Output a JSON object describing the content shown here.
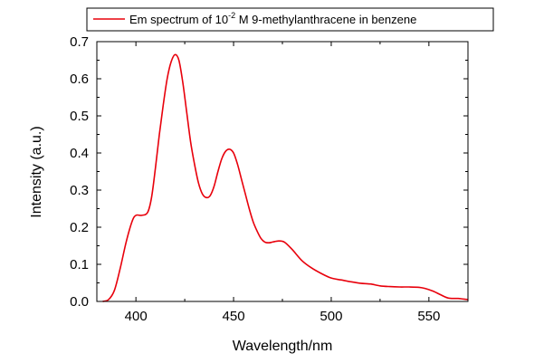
{
  "chart_data": {
    "type": "line",
    "xlabel": "Wavelength/nm",
    "ylabel": "Intensity (a.u.)",
    "xlim": [
      380,
      570
    ],
    "ylim": [
      0.0,
      0.7
    ],
    "x_ticks": [
      400,
      450,
      500,
      550
    ],
    "y_ticks": [
      0.0,
      0.1,
      0.2,
      0.3,
      0.4,
      0.5,
      0.6,
      0.7
    ],
    "x_tick_labels": [
      "400",
      "450",
      "500",
      "550"
    ],
    "y_tick_labels": [
      "0.0",
      "0.1",
      "0.2",
      "0.3",
      "0.4",
      "0.5",
      "0.6",
      "0.7"
    ],
    "grid": false,
    "legend_position": "top",
    "series": [
      {
        "name": "Em spectrum of 10⁻² M 9-methylanthracene in benzene",
        "legend_prefix": "Em spectrum of 10",
        "legend_superscript": "-2",
        "legend_suffix": " M 9-methylanthracene in benzene",
        "color": "#e8000b",
        "points": [
          [
            383,
            0.0
          ],
          [
            386,
            0.005
          ],
          [
            389,
            0.03
          ],
          [
            392,
            0.09
          ],
          [
            395,
            0.16
          ],
          [
            398,
            0.215
          ],
          [
            400,
            0.232
          ],
          [
            403,
            0.232
          ],
          [
            406,
            0.24
          ],
          [
            408,
            0.28
          ],
          [
            410,
            0.36
          ],
          [
            412,
            0.45
          ],
          [
            414,
            0.53
          ],
          [
            416,
            0.6
          ],
          [
            418,
            0.645
          ],
          [
            420,
            0.665
          ],
          [
            422,
            0.65
          ],
          [
            424,
            0.59
          ],
          [
            426,
            0.51
          ],
          [
            428,
            0.43
          ],
          [
            430,
            0.37
          ],
          [
            432,
            0.32
          ],
          [
            434,
            0.29
          ],
          [
            436,
            0.28
          ],
          [
            438,
            0.285
          ],
          [
            440,
            0.31
          ],
          [
            442,
            0.35
          ],
          [
            444,
            0.385
          ],
          [
            446,
            0.405
          ],
          [
            448,
            0.41
          ],
          [
            450,
            0.4
          ],
          [
            452,
            0.37
          ],
          [
            454,
            0.33
          ],
          [
            456,
            0.29
          ],
          [
            458,
            0.25
          ],
          [
            460,
            0.215
          ],
          [
            462,
            0.19
          ],
          [
            464,
            0.17
          ],
          [
            466,
            0.16
          ],
          [
            468,
            0.158
          ],
          [
            470,
            0.16
          ],
          [
            473,
            0.163
          ],
          [
            476,
            0.16
          ],
          [
            480,
            0.14
          ],
          [
            485,
            0.11
          ],
          [
            490,
            0.09
          ],
          [
            495,
            0.075
          ],
          [
            500,
            0.063
          ],
          [
            505,
            0.058
          ],
          [
            510,
            0.053
          ],
          [
            515,
            0.049
          ],
          [
            520,
            0.047
          ],
          [
            525,
            0.042
          ],
          [
            530,
            0.04
          ],
          [
            535,
            0.039
          ],
          [
            540,
            0.039
          ],
          [
            545,
            0.038
          ],
          [
            548,
            0.035
          ],
          [
            552,
            0.028
          ],
          [
            556,
            0.018
          ],
          [
            560,
            0.009
          ],
          [
            565,
            0.008
          ],
          [
            570,
            0.005
          ]
        ]
      }
    ]
  }
}
